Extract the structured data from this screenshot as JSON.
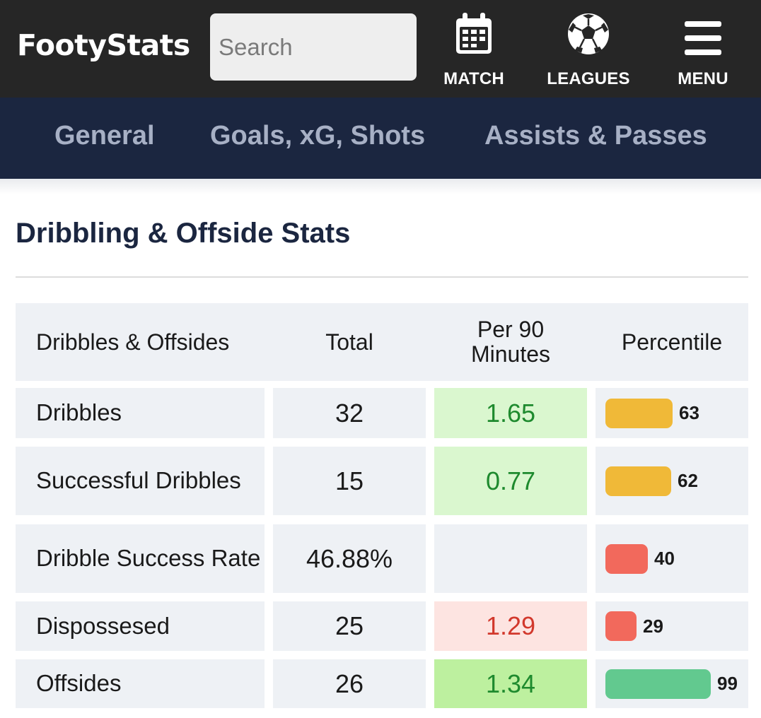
{
  "header": {
    "logo": "FootyStats",
    "search_placeholder": "Search",
    "nav": {
      "match": "MATCH",
      "leagues": "LEAGUES",
      "menu": "MENU"
    }
  },
  "tabs": [
    "General",
    "Goals, xG, Shots",
    "Assists & Passes"
  ],
  "section": {
    "title": "Dribbling & Offside Stats"
  },
  "table": {
    "columns": [
      "Dribbles & Offsides",
      "Total",
      "Per 90 Minutes",
      "Percentile"
    ],
    "rows": [
      {
        "name": "Dribbles",
        "total": "32",
        "per90": "1.65",
        "percentile": "63",
        "per90_bg": "#daf7cf",
        "per90_color": "#1e8a2e",
        "bar_color": "#f0b938"
      },
      {
        "name": "Successful Dribbles",
        "total": "15",
        "per90": "0.77",
        "percentile": "62",
        "per90_bg": "#daf7cf",
        "per90_color": "#1e8a2e",
        "bar_color": "#f0b938"
      },
      {
        "name": "Dribble Success Rate",
        "total": "46.88%",
        "per90": "",
        "percentile": "40",
        "per90_bg": "#eef1f5",
        "per90_color": "#1a1a1a",
        "bar_color": "#f2695c"
      },
      {
        "name": "Dispossesed",
        "total": "25",
        "per90": "1.29",
        "percentile": "29",
        "per90_bg": "#fde4e1",
        "per90_color": "#d2382c",
        "bar_color": "#f2695c"
      },
      {
        "name": "Offsides",
        "total": "26",
        "per90": "1.34",
        "percentile": "99",
        "per90_bg": "#bdf09f",
        "per90_color": "#1e8a2e",
        "bar_color": "#62c98f"
      }
    ]
  }
}
